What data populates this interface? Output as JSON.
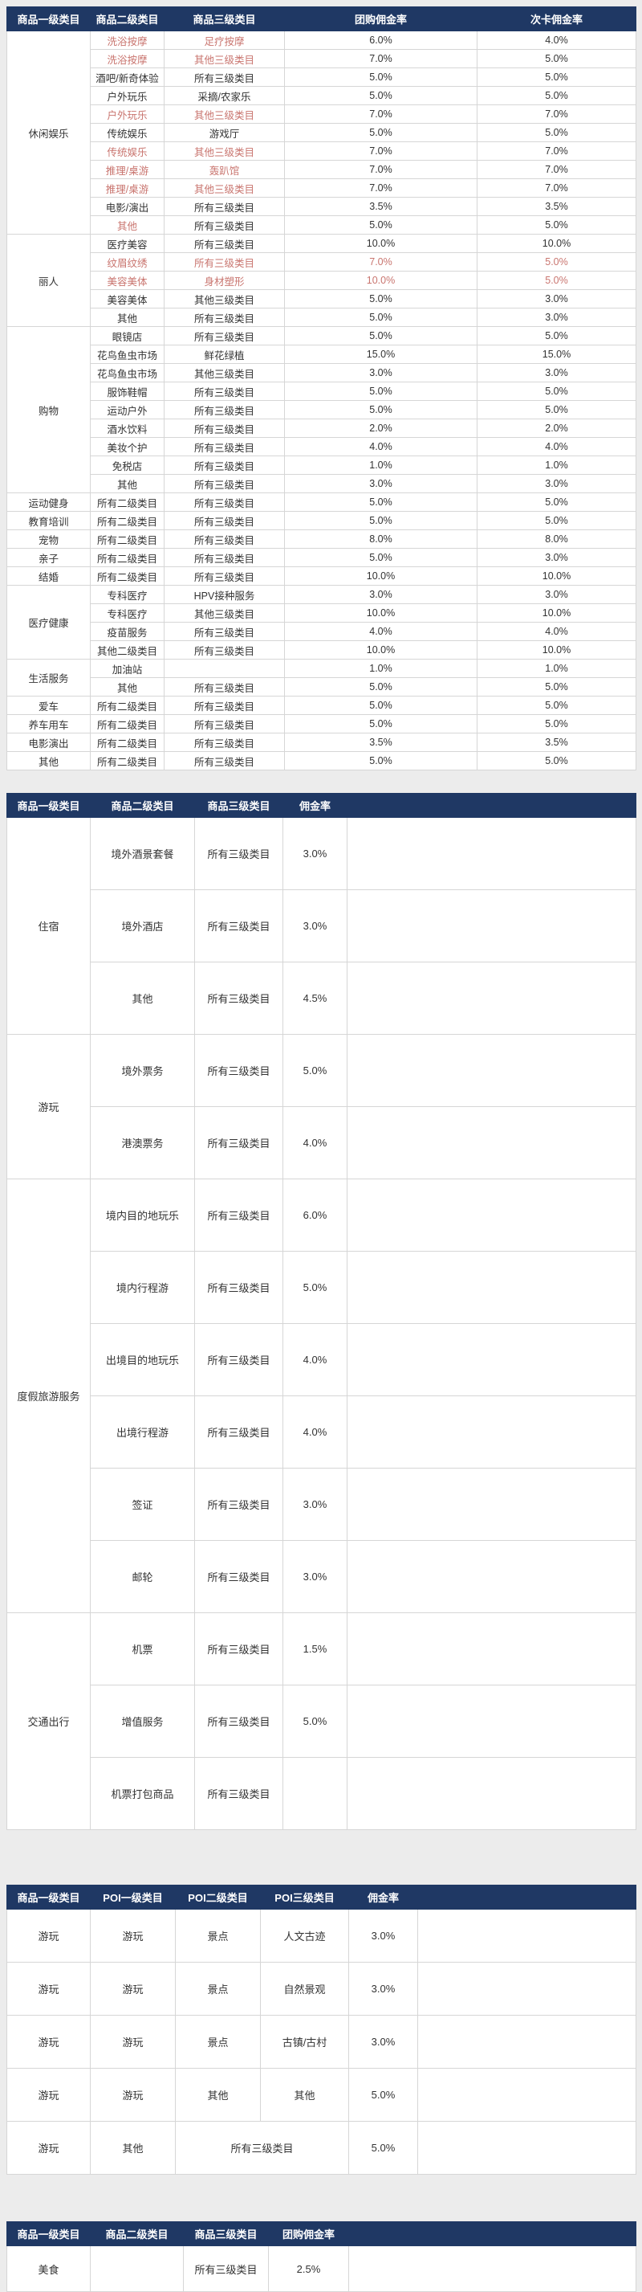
{
  "theme": {
    "header_bg": "#1f3864",
    "header_fg": "#ffffff",
    "body_fg": "#333333",
    "highlight_red": "#c9756f",
    "border": "#d6d6d6",
    "page_bg": "#ececec"
  },
  "tables": [
    {
      "name": "goods-groupbuy-card-commission-table",
      "headers": [
        {
          "t": "商品一级类目"
        },
        {
          "t": "商品二级类目"
        },
        {
          "t": "商品三级类目"
        },
        {
          "t": "团购佣金率"
        },
        {
          "t": "次卡佣金率"
        }
      ],
      "rows": [
        [
          {
            "t": "休闲娱乐",
            "s": 11
          },
          {
            "t": "洗浴按摩",
            "r": 1
          },
          {
            "t": "足疗按摩",
            "r": 1
          },
          {
            "t": "6.0%"
          },
          {
            "t": "4.0%"
          }
        ],
        [
          {
            "t": "洗浴按摩",
            "r": 1
          },
          {
            "t": "其他三级类目",
            "r": 1
          },
          {
            "t": "7.0%"
          },
          {
            "t": "5.0%"
          }
        ],
        [
          {
            "t": "酒吧/新奇体验"
          },
          {
            "t": "所有三级类目"
          },
          {
            "t": "5.0%"
          },
          {
            "t": "5.0%"
          }
        ],
        [
          {
            "t": "户外玩乐"
          },
          {
            "t": "采摘/农家乐"
          },
          {
            "t": "5.0%"
          },
          {
            "t": "5.0%"
          }
        ],
        [
          {
            "t": "户外玩乐",
            "r": 1
          },
          {
            "t": "其他三级类目",
            "r": 1
          },
          {
            "t": "7.0%"
          },
          {
            "t": "7.0%"
          }
        ],
        [
          {
            "t": "传统娱乐"
          },
          {
            "t": "游戏厅"
          },
          {
            "t": "5.0%"
          },
          {
            "t": "5.0%"
          }
        ],
        [
          {
            "t": "传统娱乐",
            "r": 1
          },
          {
            "t": "其他三级类目",
            "r": 1
          },
          {
            "t": "7.0%"
          },
          {
            "t": "7.0%"
          }
        ],
        [
          {
            "t": "推理/桌游",
            "r": 1
          },
          {
            "t": "轰趴馆",
            "r": 1
          },
          {
            "t": "7.0%"
          },
          {
            "t": "7.0%"
          }
        ],
        [
          {
            "t": "推理/桌游",
            "r": 1
          },
          {
            "t": "其他三级类目",
            "r": 1
          },
          {
            "t": "7.0%"
          },
          {
            "t": "7.0%"
          }
        ],
        [
          {
            "t": "电影/演出"
          },
          {
            "t": "所有三级类目"
          },
          {
            "t": "3.5%"
          },
          {
            "t": "3.5%"
          }
        ],
        [
          {
            "t": "其他",
            "r": 1
          },
          {
            "t": "所有三级类目"
          },
          {
            "t": "5.0%"
          },
          {
            "t": "5.0%"
          }
        ],
        [
          {
            "t": "丽人",
            "s": 5
          },
          {
            "t": "医疗美容"
          },
          {
            "t": "所有三级类目"
          },
          {
            "t": "10.0%"
          },
          {
            "t": "10.0%"
          }
        ],
        [
          {
            "t": "纹眉纹绣",
            "r": 1
          },
          {
            "t": "所有三级类目",
            "r": 1
          },
          {
            "t": "7.0%",
            "r": 1
          },
          {
            "t": "5.0%",
            "r": 1
          }
        ],
        [
          {
            "t": "美容美体",
            "r": 1
          },
          {
            "t": "身材塑形",
            "r": 1
          },
          {
            "t": "10.0%",
            "r": 1
          },
          {
            "t": "5.0%",
            "r": 1
          }
        ],
        [
          {
            "t": "美容美体"
          },
          {
            "t": "其他三级类目"
          },
          {
            "t": "5.0%"
          },
          {
            "t": "3.0%"
          }
        ],
        [
          {
            "t": "其他"
          },
          {
            "t": "所有三级类目"
          },
          {
            "t": "5.0%"
          },
          {
            "t": "3.0%"
          }
        ],
        [
          {
            "t": "购物",
            "s": 9
          },
          {
            "t": "眼镜店"
          },
          {
            "t": "所有三级类目"
          },
          {
            "t": "5.0%"
          },
          {
            "t": "5.0%"
          }
        ],
        [
          {
            "t": "花鸟鱼虫市场"
          },
          {
            "t": "鲜花绿植"
          },
          {
            "t": "15.0%"
          },
          {
            "t": "15.0%"
          }
        ],
        [
          {
            "t": "花鸟鱼虫市场"
          },
          {
            "t": "其他三级类目"
          },
          {
            "t": "3.0%"
          },
          {
            "t": "3.0%"
          }
        ],
        [
          {
            "t": "服饰鞋帽"
          },
          {
            "t": "所有三级类目"
          },
          {
            "t": "5.0%"
          },
          {
            "t": "5.0%"
          }
        ],
        [
          {
            "t": "运动户外"
          },
          {
            "t": "所有三级类目"
          },
          {
            "t": "5.0%"
          },
          {
            "t": "5.0%"
          }
        ],
        [
          {
            "t": "酒水饮料"
          },
          {
            "t": "所有三级类目"
          },
          {
            "t": "2.0%"
          },
          {
            "t": "2.0%"
          }
        ],
        [
          {
            "t": "美妆个护"
          },
          {
            "t": "所有三级类目"
          },
          {
            "t": "4.0%"
          },
          {
            "t": "4.0%"
          }
        ],
        [
          {
            "t": "免税店"
          },
          {
            "t": "所有三级类目"
          },
          {
            "t": "1.0%"
          },
          {
            "t": "1.0%"
          }
        ],
        [
          {
            "t": "其他"
          },
          {
            "t": "所有三级类目"
          },
          {
            "t": "3.0%"
          },
          {
            "t": "3.0%"
          }
        ],
        [
          {
            "t": "运动健身"
          },
          {
            "t": "所有二级类目"
          },
          {
            "t": "所有三级类目"
          },
          {
            "t": "5.0%"
          },
          {
            "t": "5.0%"
          }
        ],
        [
          {
            "t": "教育培训"
          },
          {
            "t": "所有二级类目"
          },
          {
            "t": "所有三级类目"
          },
          {
            "t": "5.0%"
          },
          {
            "t": "5.0%"
          }
        ],
        [
          {
            "t": "宠物"
          },
          {
            "t": "所有二级类目"
          },
          {
            "t": "所有三级类目"
          },
          {
            "t": "8.0%"
          },
          {
            "t": "8.0%"
          }
        ],
        [
          {
            "t": "亲子"
          },
          {
            "t": "所有二级类目"
          },
          {
            "t": "所有三级类目"
          },
          {
            "t": "5.0%"
          },
          {
            "t": "3.0%"
          }
        ],
        [
          {
            "t": "结婚"
          },
          {
            "t": "所有二级类目"
          },
          {
            "t": "所有三级类目"
          },
          {
            "t": "10.0%"
          },
          {
            "t": "10.0%"
          }
        ],
        [
          {
            "t": "医疗健康",
            "s": 4
          },
          {
            "t": "专科医疗"
          },
          {
            "t": "HPV接种服务"
          },
          {
            "t": "3.0%"
          },
          {
            "t": "3.0%"
          }
        ],
        [
          {
            "t": "专科医疗"
          },
          {
            "t": "其他三级类目"
          },
          {
            "t": "10.0%"
          },
          {
            "t": "10.0%"
          }
        ],
        [
          {
            "t": "疫苗服务"
          },
          {
            "t": "所有三级类目"
          },
          {
            "t": "4.0%"
          },
          {
            "t": "4.0%"
          }
        ],
        [
          {
            "t": "其他二级类目"
          },
          {
            "t": "所有三级类目"
          },
          {
            "t": "10.0%"
          },
          {
            "t": "10.0%"
          }
        ],
        [
          {
            "t": "生活服务",
            "s": 2
          },
          {
            "t": "加油站"
          },
          {
            "t": ""
          },
          {
            "t": "1.0%"
          },
          {
            "t": "1.0%"
          }
        ],
        [
          {
            "t": "其他"
          },
          {
            "t": "所有三级类目"
          },
          {
            "t": "5.0%"
          },
          {
            "t": "5.0%"
          }
        ],
        [
          {
            "t": "爱车"
          },
          {
            "t": "所有二级类目"
          },
          {
            "t": "所有三级类目"
          },
          {
            "t": "5.0%"
          },
          {
            "t": "5.0%"
          }
        ],
        [
          {
            "t": "养车用车"
          },
          {
            "t": "所有二级类目"
          },
          {
            "t": "所有三级类目"
          },
          {
            "t": "5.0%"
          },
          {
            "t": "5.0%"
          }
        ],
        [
          {
            "t": "电影演出"
          },
          {
            "t": "所有二级类目"
          },
          {
            "t": "所有三级类目"
          },
          {
            "t": "3.5%"
          },
          {
            "t": "3.5%"
          }
        ],
        [
          {
            "t": "其他"
          },
          {
            "t": "所有二级类目"
          },
          {
            "t": "所有三级类目"
          },
          {
            "t": "5.0%"
          },
          {
            "t": "5.0%"
          }
        ]
      ]
    },
    {
      "name": "travel-goods-commission-table",
      "headers": [
        {
          "t": "商品一级类目"
        },
        {
          "t": "商品二级类目"
        },
        {
          "t": "商品三级类目"
        },
        {
          "t": "佣金率"
        },
        {
          "t": ""
        }
      ],
      "rows": [
        [
          {
            "t": "住宿",
            "s": 3
          },
          {
            "t": "境外酒景套餐"
          },
          {
            "t": "所有三级类目"
          },
          {
            "t": "3.0%"
          },
          {
            "t": ""
          }
        ],
        [
          {
            "t": "境外酒店"
          },
          {
            "t": "所有三级类目"
          },
          {
            "t": "3.0%"
          },
          {
            "t": ""
          }
        ],
        [
          {
            "t": "其他"
          },
          {
            "t": "所有三级类目"
          },
          {
            "t": "4.5%"
          },
          {
            "t": ""
          }
        ],
        [
          {
            "t": "游玩",
            "s": 2
          },
          {
            "t": "境外票务"
          },
          {
            "t": "所有三级类目"
          },
          {
            "t": "5.0%"
          },
          {
            "t": ""
          }
        ],
        [
          {
            "t": "港澳票务"
          },
          {
            "t": "所有三级类目"
          },
          {
            "t": "4.0%"
          },
          {
            "t": ""
          }
        ],
        [
          {
            "t": "度假旅游服务",
            "s": 6
          },
          {
            "t": "境内目的地玩乐"
          },
          {
            "t": "所有三级类目"
          },
          {
            "t": "6.0%"
          },
          {
            "t": ""
          }
        ],
        [
          {
            "t": "境内行程游"
          },
          {
            "t": "所有三级类目"
          },
          {
            "t": "5.0%"
          },
          {
            "t": ""
          }
        ],
        [
          {
            "t": "出境目的地玩乐"
          },
          {
            "t": "所有三级类目"
          },
          {
            "t": "4.0%"
          },
          {
            "t": ""
          }
        ],
        [
          {
            "t": "出境行程游"
          },
          {
            "t": "所有三级类目"
          },
          {
            "t": "4.0%"
          },
          {
            "t": ""
          }
        ],
        [
          {
            "t": "签证"
          },
          {
            "t": "所有三级类目"
          },
          {
            "t": "3.0%"
          },
          {
            "t": ""
          }
        ],
        [
          {
            "t": "邮轮"
          },
          {
            "t": "所有三级类目"
          },
          {
            "t": "3.0%"
          },
          {
            "t": ""
          }
        ],
        [
          {
            "t": "交通出行",
            "s": 3
          },
          {
            "t": "机票"
          },
          {
            "t": "所有三级类目"
          },
          {
            "t": "1.5%"
          },
          {
            "t": ""
          }
        ],
        [
          {
            "t": "增值服务"
          },
          {
            "t": "所有三级类目"
          },
          {
            "t": "5.0%"
          },
          {
            "t": ""
          }
        ],
        [
          {
            "t": "机票打包商品"
          },
          {
            "t": "所有三级类目"
          },
          {
            "t": ""
          },
          {
            "t": ""
          }
        ]
      ]
    },
    {
      "name": "poi-commission-table",
      "headers": [
        {
          "t": "商品一级类目"
        },
        {
          "t": "POI一级类目"
        },
        {
          "t": "POI二级类目"
        },
        {
          "t": "POI三级类目"
        },
        {
          "t": "佣金率"
        },
        {
          "t": ""
        }
      ],
      "rows": [
        [
          {
            "t": "游玩"
          },
          {
            "t": "游玩"
          },
          {
            "t": "景点"
          },
          {
            "t": "人文古迹"
          },
          {
            "t": "3.0%"
          },
          {
            "t": ""
          }
        ],
        [
          {
            "t": "游玩"
          },
          {
            "t": "游玩"
          },
          {
            "t": "景点"
          },
          {
            "t": "自然景观"
          },
          {
            "t": "3.0%"
          },
          {
            "t": ""
          }
        ],
        [
          {
            "t": "游玩"
          },
          {
            "t": "游玩"
          },
          {
            "t": "景点"
          },
          {
            "t": "古镇/古村"
          },
          {
            "t": "3.0%"
          },
          {
            "t": ""
          }
        ],
        [
          {
            "t": "游玩"
          },
          {
            "t": "游玩"
          },
          {
            "t": "其他"
          },
          {
            "t": "其他"
          },
          {
            "t": "5.0%"
          },
          {
            "t": ""
          }
        ],
        [
          {
            "t": "游玩"
          },
          {
            "t": "其他"
          },
          {
            "t": "所有三级类目",
            "c": 2
          },
          {
            "t": "5.0%"
          },
          {
            "t": ""
          }
        ]
      ]
    },
    {
      "name": "food-groupbuy-commission-table",
      "headers": [
        {
          "t": "商品一级类目"
        },
        {
          "t": "商品二级类目"
        },
        {
          "t": "商品三级类目"
        },
        {
          "t": "团购佣金率"
        },
        {
          "t": ""
        }
      ],
      "rows": [
        [
          {
            "t": "美食"
          },
          {
            "t": ""
          },
          {
            "t": "所有三级类目"
          },
          {
            "t": "2.5%"
          },
          {
            "t": ""
          }
        ]
      ]
    }
  ]
}
